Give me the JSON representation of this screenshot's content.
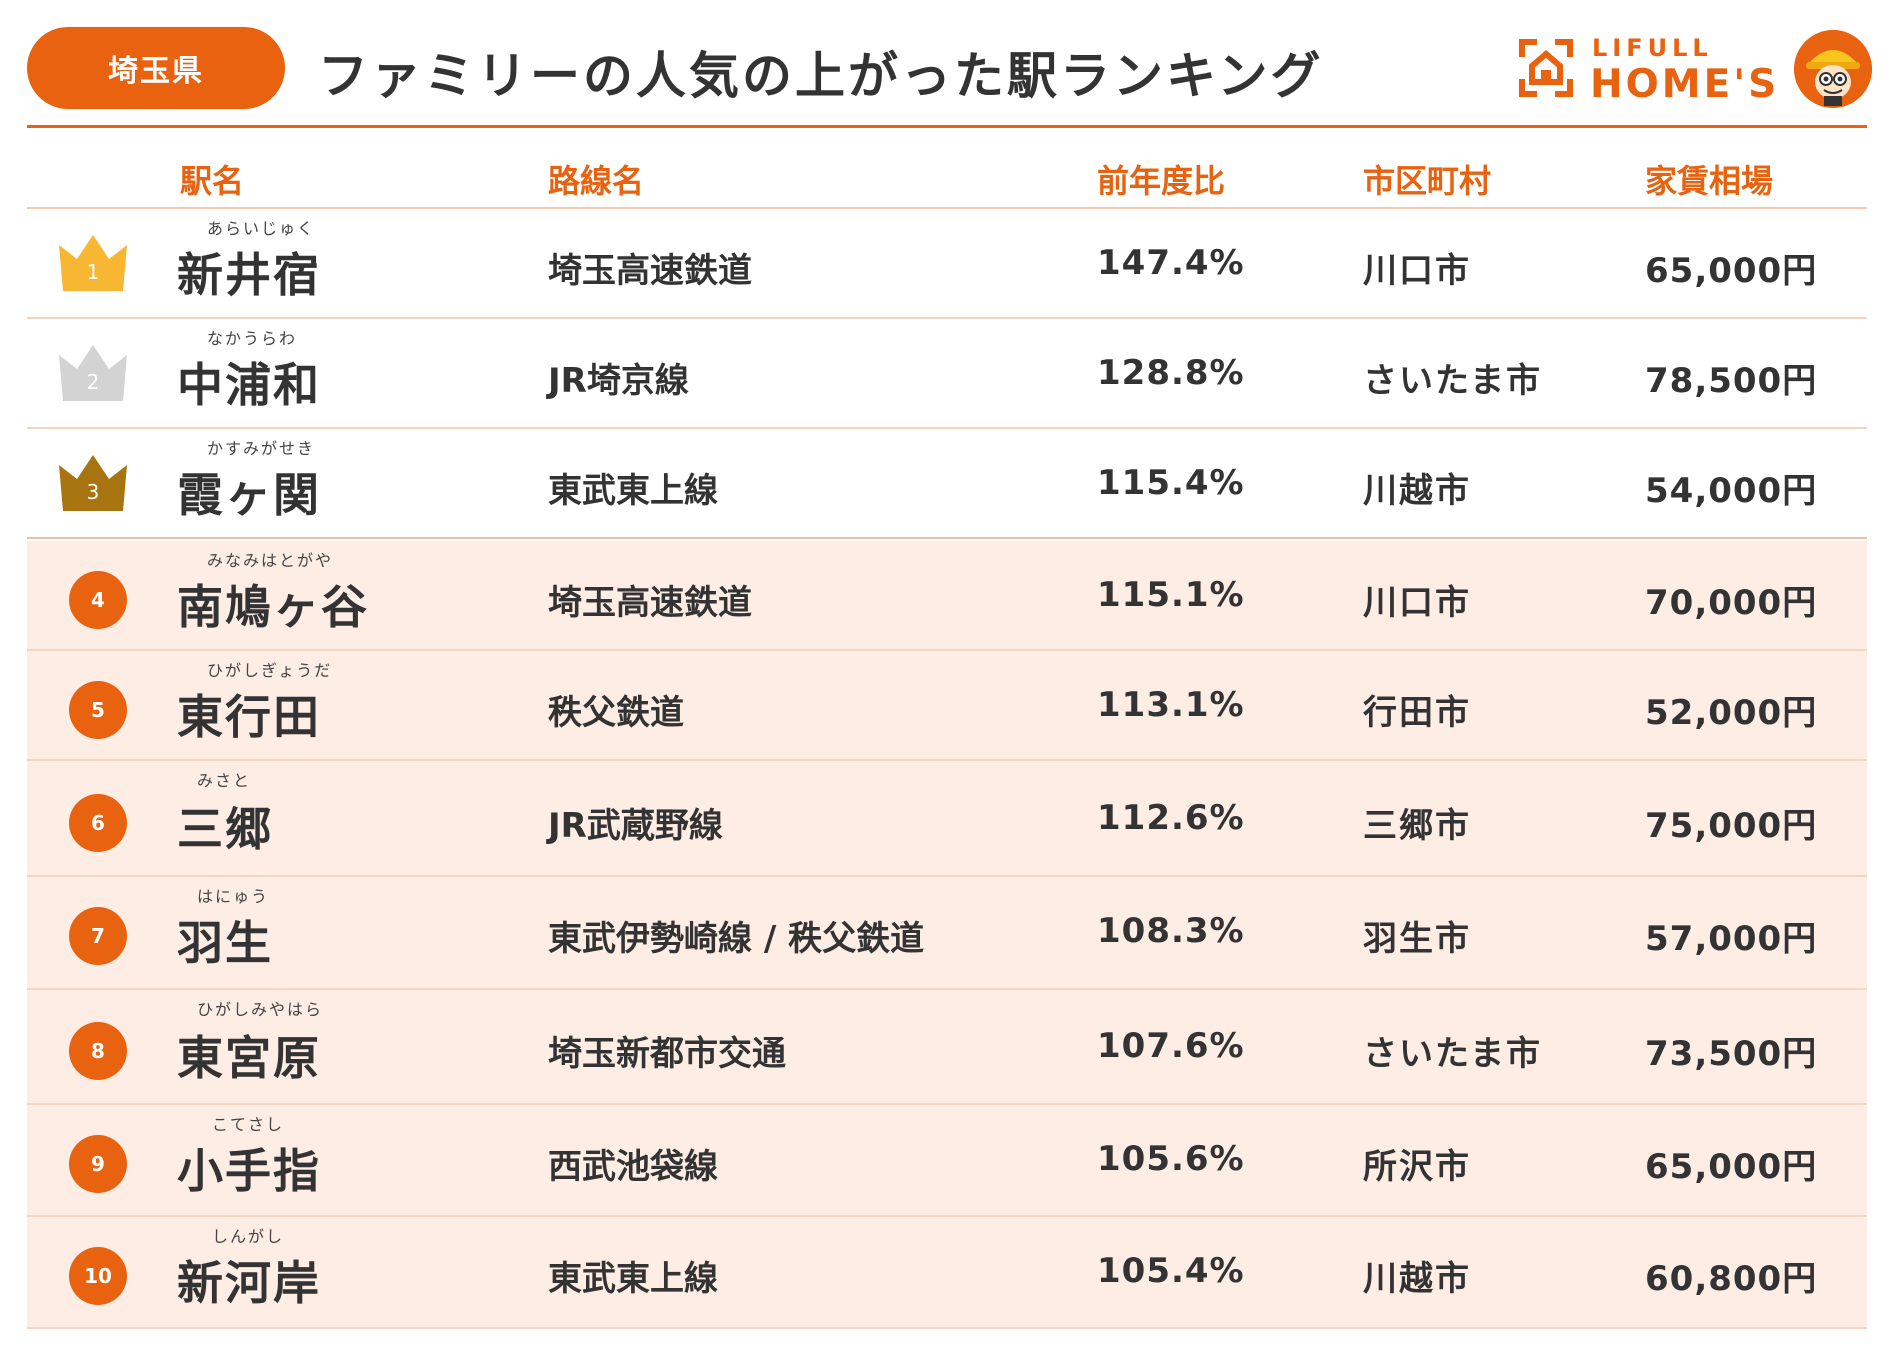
{
  "header": {
    "prefecture": "埼玉県",
    "title": "ファミリーの人気の上がった駅ランキング",
    "logo_small": "LIFULL",
    "logo_big": "HOME'S"
  },
  "columns": {
    "station": "駅名",
    "line": "路線名",
    "rate": "前年度比",
    "city": "市区町村",
    "rent": "家賃相場"
  },
  "rows": [
    {
      "rank": "1",
      "furigana": "あらいじゅく",
      "station": "新井宿",
      "line": "埼玉高速鉄道",
      "rate": "147.4%",
      "city": "川口市",
      "rent": "65,000円"
    },
    {
      "rank": "2",
      "furigana": "なかうらわ",
      "station": "中浦和",
      "line": "JR埼京線",
      "rate": "128.8%",
      "city": "さいたま市",
      "rent": "78,500円"
    },
    {
      "rank": "3",
      "furigana": "かすみがせき",
      "station": "霞ヶ関",
      "line": "東武東上線",
      "rate": "115.4%",
      "city": "川越市",
      "rent": "54,000円"
    },
    {
      "rank": "4",
      "furigana": "みなみはとがや",
      "station": "南鳩ヶ谷",
      "line": "埼玉高速鉄道",
      "rate": "115.1%",
      "city": "川口市",
      "rent": "70,000円"
    },
    {
      "rank": "5",
      "furigana": "ひがしぎょうだ",
      "station": "東行田",
      "line": "秩父鉄道",
      "rate": "113.1%",
      "city": "行田市",
      "rent": "52,000円"
    },
    {
      "rank": "6",
      "furigana": "みさと",
      "station": "三郷",
      "line": "JR武蔵野線",
      "rate": "112.6%",
      "city": "三郷市",
      "rent": "75,000円"
    },
    {
      "rank": "7",
      "furigana": "はにゅう",
      "station": "羽生",
      "line": "東武伊勢崎線 / 秩父鉄道",
      "rate": "108.3%",
      "city": "羽生市",
      "rent": "57,000円"
    },
    {
      "rank": "8",
      "furigana": "ひがしみやはら",
      "station": "東宮原",
      "line": "埼玉新都市交通",
      "rate": "107.6%",
      "city": "さいたま市",
      "rent": "73,500円"
    },
    {
      "rank": "9",
      "furigana": "こてさし",
      "station": "小手指",
      "line": "西武池袋線",
      "rate": "105.6%",
      "city": "所沢市",
      "rent": "65,000円"
    },
    {
      "rank": "10",
      "furigana": "しんがし",
      "station": "新河岸",
      "line": "東武東上線",
      "rate": "105.4%",
      "city": "川越市",
      "rent": "60,800円"
    }
  ],
  "colors": {
    "accent": "#e8620f",
    "row_tint": "#fdede4",
    "gold": "#f7b733",
    "silver": "#d3d3d3",
    "bronze": "#a8740f"
  },
  "icons": {
    "crown_1": "gold-crown-icon",
    "crown_2": "silver-crown-icon",
    "crown_3": "bronze-crown-icon",
    "logo": "house-logo-icon",
    "mascot": "mascot-avatar"
  }
}
